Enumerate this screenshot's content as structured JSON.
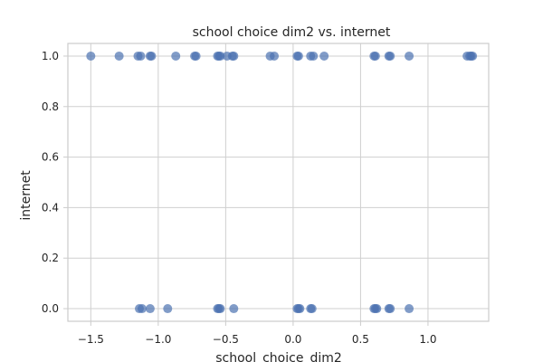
{
  "chart_data": {
    "type": "scatter",
    "title": "school choice dim2 vs. internet",
    "xlabel": "school_choice_dim2",
    "ylabel": "internet",
    "xlim": [
      -1.67,
      1.45
    ],
    "ylim": [
      -0.05,
      1.05
    ],
    "xticks": [
      -1.5,
      -1.0,
      -0.5,
      0.0,
      0.5,
      1.0
    ],
    "xtick_labels": [
      "−1.5",
      "−1.0",
      "−0.5",
      "0.0",
      "0.5",
      "1.0"
    ],
    "yticks": [
      0.0,
      0.2,
      0.4,
      0.6,
      0.8,
      1.0
    ],
    "ytick_labels": [
      "0.0",
      "0.2",
      "0.4",
      "0.6",
      "0.8",
      "1.0"
    ],
    "grid": true,
    "marker_color": "#4c72b0",
    "marker_alpha": 0.7,
    "points": [
      {
        "x": -1.5,
        "y": 1
      },
      {
        "x": -1.29,
        "y": 1
      },
      {
        "x": -1.15,
        "y": 1
      },
      {
        "x": -1.13,
        "y": 1
      },
      {
        "x": -1.06,
        "y": 1
      },
      {
        "x": -1.05,
        "y": 1
      },
      {
        "x": -0.87,
        "y": 1
      },
      {
        "x": -0.73,
        "y": 1
      },
      {
        "x": -0.72,
        "y": 1
      },
      {
        "x": -0.56,
        "y": 1
      },
      {
        "x": -0.55,
        "y": 1
      },
      {
        "x": -0.54,
        "y": 1
      },
      {
        "x": -0.49,
        "y": 1
      },
      {
        "x": -0.45,
        "y": 1
      },
      {
        "x": -0.44,
        "y": 1
      },
      {
        "x": -0.17,
        "y": 1
      },
      {
        "x": -0.14,
        "y": 1
      },
      {
        "x": 0.03,
        "y": 1
      },
      {
        "x": 0.04,
        "y": 1
      },
      {
        "x": 0.13,
        "y": 1
      },
      {
        "x": 0.15,
        "y": 1
      },
      {
        "x": 0.23,
        "y": 1
      },
      {
        "x": 0.6,
        "y": 1
      },
      {
        "x": 0.61,
        "y": 1
      },
      {
        "x": 0.71,
        "y": 1
      },
      {
        "x": 0.72,
        "y": 1
      },
      {
        "x": 0.86,
        "y": 1
      },
      {
        "x": 1.29,
        "y": 1
      },
      {
        "x": 1.31,
        "y": 1
      },
      {
        "x": 1.32,
        "y": 1
      },
      {
        "x": 1.33,
        "y": 1
      },
      {
        "x": -1.14,
        "y": 0
      },
      {
        "x": -1.12,
        "y": 0
      },
      {
        "x": -1.06,
        "y": 0
      },
      {
        "x": -0.93,
        "y": 0
      },
      {
        "x": -0.56,
        "y": 0
      },
      {
        "x": -0.55,
        "y": 0
      },
      {
        "x": -0.54,
        "y": 0
      },
      {
        "x": -0.44,
        "y": 0
      },
      {
        "x": 0.03,
        "y": 0
      },
      {
        "x": 0.04,
        "y": 0
      },
      {
        "x": 0.05,
        "y": 0
      },
      {
        "x": 0.13,
        "y": 0
      },
      {
        "x": 0.14,
        "y": 0
      },
      {
        "x": 0.6,
        "y": 0
      },
      {
        "x": 0.61,
        "y": 0
      },
      {
        "x": 0.62,
        "y": 0
      },
      {
        "x": 0.71,
        "y": 0
      },
      {
        "x": 0.72,
        "y": 0
      },
      {
        "x": 0.86,
        "y": 0
      }
    ]
  }
}
